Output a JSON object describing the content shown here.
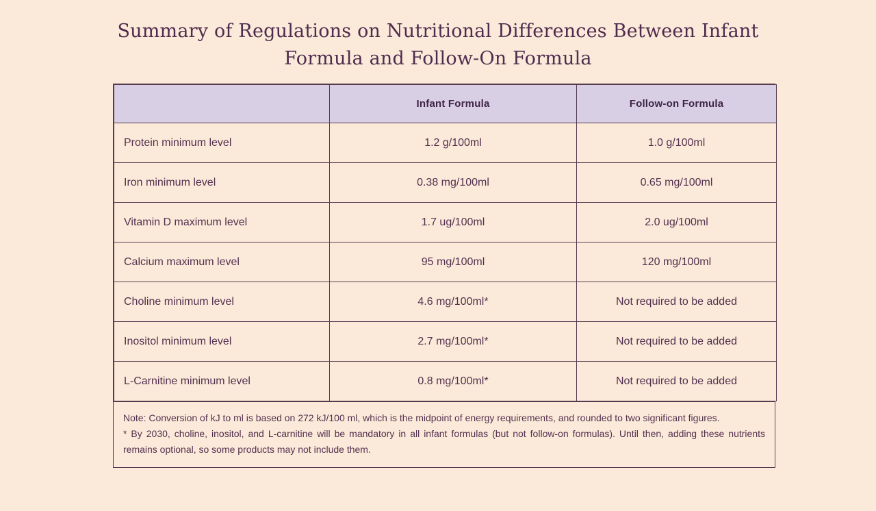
{
  "title": "Summary of Regulations on Nutritional Differences Between Infant Formula and Follow-On Formula",
  "table": {
    "headers": [
      "",
      "Infant Formula",
      "Follow-on Formula"
    ],
    "rows": [
      [
        "Protein minimum level",
        "1.2 g/100ml",
        "1.0 g/100ml"
      ],
      [
        "Iron minimum level",
        "0.38 mg/100ml",
        "0.65 mg/100ml"
      ],
      [
        "Vitamin D maximum level",
        "1.7 ug/100ml",
        "2.0 ug/100ml"
      ],
      [
        "Calcium maximum level",
        "95 mg/100ml",
        "120 mg/100ml"
      ],
      [
        "Choline minimum level",
        "4.6 mg/100ml*",
        "Not required to be added"
      ],
      [
        "Inositol minimum level",
        "2.7 mg/100ml*",
        "Not required to be added"
      ],
      [
        "L-Carnitine minimum level",
        "0.8 mg/100ml*",
        "Not required to be added"
      ]
    ]
  },
  "note": {
    "line1": "Note: Conversion of kJ to ml is based on 272 kJ/100 ml, which is the midpoint of energy requirements, and rounded to two significant figures.",
    "line2": "* By 2030, choline, inositol, and L-carnitine will be mandatory in all infant formulas (but not follow-on formulas). Until then, adding these nutrients remains optional, so some products may not include them."
  },
  "colors": {
    "page_background": "#fbead9",
    "header_background": "#d8cfe5",
    "border": "#553a50",
    "title_text": "#4f2b4e",
    "body_text": "#53304f"
  }
}
